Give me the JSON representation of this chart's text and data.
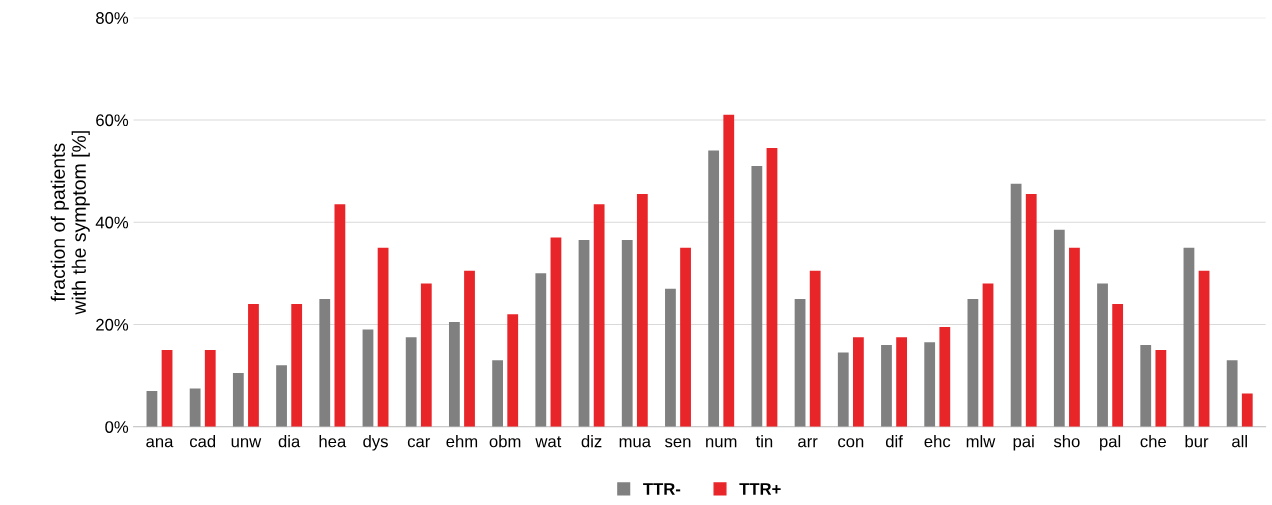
{
  "chart_data": {
    "type": "bar",
    "ylabel": "fraction of patients\nwith the symptom [%]",
    "categories": [
      "ana",
      "cad",
      "unw",
      "dia",
      "hea",
      "dys",
      "car",
      "ehm",
      "obm",
      "wat",
      "diz",
      "mua",
      "sen",
      "num",
      "tin",
      "arr",
      "con",
      "dif",
      "ehc",
      "mlw",
      "pai",
      "sho",
      "pal",
      "che",
      "bur",
      "all"
    ],
    "series": [
      {
        "name": "TTR-",
        "color": "#808080",
        "values": [
          7,
          7.5,
          10.5,
          12,
          25,
          19,
          17.5,
          20.5,
          13,
          30,
          36.5,
          36.5,
          27,
          54,
          51,
          25,
          14.5,
          16,
          16.5,
          25,
          47.5,
          38.5,
          28,
          16,
          35,
          13
        ]
      },
      {
        "name": "TTR+",
        "color": "#e8262a",
        "values": [
          15,
          15,
          24,
          24,
          43.5,
          35,
          28,
          30.5,
          22,
          37,
          43.5,
          45.5,
          35,
          61,
          54.5,
          30.5,
          17.5,
          17.5,
          19.5,
          28,
          45.5,
          35,
          24,
          15,
          30.5,
          6.5
        ]
      }
    ],
    "ylim": [
      0,
      80
    ],
    "yticks": [
      {
        "value": 0,
        "label": "0%"
      },
      {
        "value": 20,
        "label": "20%"
      },
      {
        "value": 40,
        "label": "40%"
      },
      {
        "value": 60,
        "label": "60%"
      },
      {
        "value": 80,
        "label": "80%"
      }
    ],
    "grid": "y",
    "legend": "bottom"
  }
}
